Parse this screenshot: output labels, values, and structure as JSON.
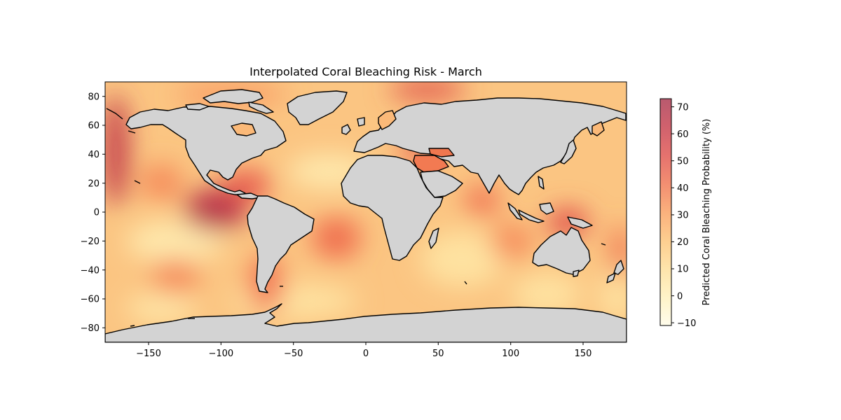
{
  "title": "Interpolated Coral Bleaching Risk - March",
  "chart_data": {
    "type": "heatmap",
    "title": "Interpolated Coral Bleaching Risk - March",
    "xlabel": "",
    "ylabel": "",
    "xlim": [
      -180,
      180
    ],
    "ylim": [
      -90,
      90
    ],
    "x_ticks": [
      "−150",
      "−100",
      "−50",
      "0",
      "50",
      "100",
      "150"
    ],
    "x_tick_values": [
      -150,
      -100,
      -50,
      0,
      50,
      100,
      150
    ],
    "y_ticks": [
      "−80",
      "−60",
      "−40",
      "−20",
      "0",
      "20",
      "40",
      "60",
      "80"
    ],
    "y_tick_values": [
      -80,
      -60,
      -40,
      -20,
      0,
      20,
      40,
      60,
      80
    ],
    "colorbar": {
      "label": "Predicted Coral Bleaching Probability (%)",
      "ticks": [
        "−10",
        "0",
        "10",
        "20",
        "30",
        "40",
        "50",
        "60",
        "70"
      ],
      "tick_values": [
        -10,
        0,
        10,
        20,
        30,
        40,
        50,
        60,
        70
      ],
      "range": [
        -11,
        73
      ],
      "colormap": "YlOrRd",
      "alpha": 0.75
    },
    "land_color": "#d3d3d3",
    "coastline_color": "#000000",
    "hotspots": [
      {
        "lon": -100,
        "lat": 0,
        "value": 62
      },
      {
        "lon": -178,
        "lat": 45,
        "value": 60
      },
      {
        "lon": 45,
        "lat": 83,
        "value": 55
      },
      {
        "lon": -70,
        "lat": 18,
        "value": 52
      },
      {
        "lon": 140,
        "lat": -8,
        "value": 50
      },
      {
        "lon": 40,
        "lat": 40,
        "value": 50
      },
      {
        "lon": -20,
        "lat": -20,
        "value": 46
      },
      {
        "lon": -60,
        "lat": -50,
        "value": 45
      },
      {
        "lon": 80,
        "lat": 8,
        "value": 44
      },
      {
        "lon": 178,
        "lat": -30,
        "value": 45
      },
      {
        "lon": -140,
        "lat": 20,
        "value": 40
      },
      {
        "lon": 100,
        "lat": -20,
        "value": 38
      }
    ]
  }
}
